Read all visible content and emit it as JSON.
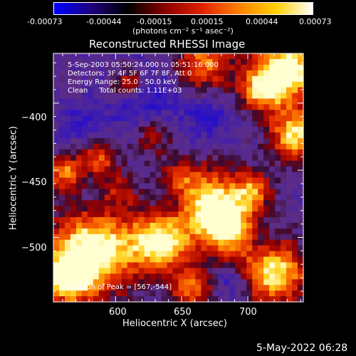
{
  "colorbar": {
    "tick_labels": [
      "-0.00073",
      "-0.00044",
      "-0.00015",
      "0.00015",
      "0.00044",
      "0.00073"
    ],
    "unit_label": "(photons cm⁻² s⁻¹ asec⁻²)",
    "gradient": [
      "#0000ff",
      "#1e0080",
      "#000000",
      "#8a0000",
      "#e02000",
      "#ff8000",
      "#ffd000",
      "#ffffff"
    ]
  },
  "chart_data": {
    "type": "heatmap",
    "title": "Reconstructed RHESSI Image",
    "xlabel": "Heliocentric X (arcsec)",
    "ylabel": "Heliocentric Y (arcsec)",
    "xlim": [
      553,
      742
    ],
    "ylim": [
      -548,
      -363
    ],
    "xticks": [
      600,
      650,
      700
    ],
    "yticks": [
      -400,
      -450,
      -500
    ],
    "xtick_labels": [
      "600",
      "650",
      "700"
    ],
    "ytick_labels": [
      "−400",
      "−450",
      "−500"
    ],
    "value_range": [
      -0.00073,
      0.00073
    ],
    "peak_position": [
      567,
      -544
    ],
    "annotations": [
      "5-Sep-2003 05:50:24.000 to 05:51:16.000",
      "Detectors: 3F 4F 5F 6F 7F 8F, Att 0",
      "Energy Range: 25.0 - 50.0 keV",
      "Clean     Total counts: 1.11E+03"
    ],
    "peak_text": "Position of Peak = [567,-544]"
  },
  "footer": {
    "date": "5-May-2022 06:28"
  }
}
